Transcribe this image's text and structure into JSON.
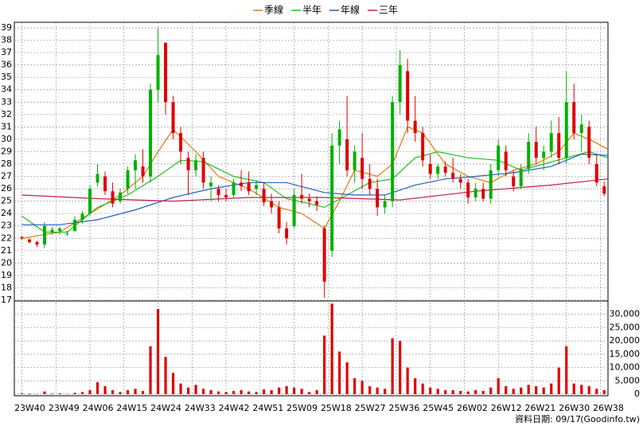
{
  "chart_data": {
    "type": "candlestick",
    "x": [
      0,
      2,
      4,
      6,
      8,
      10,
      12,
      14,
      16,
      18,
      20,
      22,
      24,
      26,
      28,
      30,
      32,
      34,
      36,
      38,
      40,
      42,
      44,
      46,
      48,
      50,
      52,
      54,
      56,
      58,
      60,
      62,
      64,
      66,
      68,
      70,
      72,
      74,
      76,
      78,
      80,
      82,
      84,
      86,
      88,
      90,
      92,
      94,
      96,
      98,
      100,
      102,
      104,
      106,
      108,
      110,
      112,
      114,
      116,
      118,
      120,
      122,
      124,
      126,
      128,
      130,
      132,
      134,
      136,
      138,
      140,
      142,
      144,
      146,
      148,
      150,
      152,
      154
    ],
    "open": [
      22.1,
      21.9,
      21.7,
      21.5,
      22.5,
      22.6,
      22.4,
      22.6,
      23.5,
      24.0,
      26.5,
      27.0,
      25.8,
      25.0,
      26.0,
      27.5,
      27.8,
      27.0,
      34.0,
      37.8,
      33.0,
      30.5,
      28.5,
      27.5,
      28.5,
      26.2,
      26.0,
      25.5,
      25.5,
      26.5,
      26.5,
      26.0,
      26.0,
      25.0,
      24.5,
      22.8,
      23.0,
      25.5,
      25.2,
      25.0,
      22.8,
      21.0,
      29.5,
      30.0,
      27.5,
      28.5,
      26.8,
      26.0,
      24.5,
      25.0,
      33.0,
      35.5,
      31.5,
      30.5,
      28.0,
      27.2,
      27.8,
      27.3,
      26.8,
      26.5,
      25.3,
      26.0,
      25.2,
      27.5,
      29.0,
      27.0,
      26.2,
      27.6,
      29.8,
      28.5,
      29.0,
      30.5,
      28.5,
      33.0,
      30.5,
      31.0,
      28.0,
      26.2
    ],
    "high": [
      22.2,
      22.0,
      21.8,
      23.3,
      22.9,
      22.9,
      22.6,
      23.8,
      24.2,
      26.3,
      28.0,
      27.4,
      26.5,
      26.0,
      27.8,
      28.8,
      29.2,
      34.5,
      39.0,
      37.8,
      33.5,
      31.0,
      29.0,
      28.8,
      29.0,
      27.0,
      26.3,
      26.0,
      26.8,
      27.5,
      27.4,
      26.7,
      26.5,
      25.6,
      25.0,
      23.3,
      26.0,
      27.2,
      25.6,
      25.4,
      23.0,
      30.5,
      31.5,
      33.5,
      29.5,
      30.5,
      28.0,
      26.8,
      25.5,
      33.5,
      37.2,
      36.5,
      33.5,
      31.0,
      28.8,
      28.0,
      28.2,
      28.5,
      27.2,
      26.8,
      26.5,
      26.5,
      28.0,
      30.0,
      29.5,
      27.5,
      28.0,
      30.5,
      31.0,
      29.5,
      31.5,
      31.8,
      35.5,
      34.5,
      32.0,
      31.5,
      28.8,
      26.6
    ],
    "low": [
      21.9,
      21.6,
      21.3,
      21.2,
      22.3,
      22.3,
      22.2,
      22.5,
      23.2,
      23.8,
      26.2,
      25.5,
      24.5,
      24.8,
      25.6,
      26.0,
      26.5,
      26.5,
      33.0,
      32.0,
      30.0,
      28.0,
      25.5,
      27.0,
      26.0,
      25.0,
      25.0,
      25.0,
      25.2,
      25.8,
      25.5,
      25.5,
      24.6,
      24.0,
      22.4,
      21.5,
      22.8,
      24.8,
      24.5,
      24.2,
      17.2,
      20.5,
      28.0,
      27.0,
      26.5,
      26.0,
      25.5,
      23.8,
      24.0,
      24.5,
      32.0,
      30.5,
      29.8,
      27.8,
      26.8,
      26.8,
      27.0,
      26.5,
      26.0,
      24.8,
      25.0,
      25.0,
      24.8,
      27.0,
      27.0,
      25.8,
      26.0,
      27.2,
      28.0,
      27.5,
      28.5,
      28.0,
      28.0,
      30.0,
      29.0,
      28.0,
      26.2,
      25.4
    ],
    "close": [
      22.0,
      21.7,
      21.5,
      23.0,
      22.7,
      22.8,
      22.4,
      23.5,
      24.0,
      26.0,
      27.2,
      25.8,
      24.8,
      25.7,
      27.5,
      28.3,
      27.0,
      34.0,
      36.8,
      33.0,
      30.5,
      29.0,
      27.5,
      28.3,
      26.5,
      26.5,
      25.5,
      25.3,
      26.5,
      26.2,
      25.8,
      26.3,
      24.9,
      24.5,
      22.8,
      22.0,
      25.5,
      25.2,
      25.0,
      24.7,
      18.5,
      29.5,
      30.8,
      27.5,
      29.0,
      26.8,
      26.0,
      24.5,
      25.0,
      33.0,
      36.0,
      31.5,
      30.5,
      28.3,
      27.2,
      27.8,
      27.3,
      26.8,
      26.5,
      25.3,
      26.0,
      25.2,
      27.5,
      29.5,
      27.5,
      26.2,
      27.6,
      29.8,
      28.5,
      29.0,
      30.5,
      28.5,
      33.0,
      30.5,
      31.2,
      28.5,
      26.5,
      25.6
    ],
    "up_color": "#00b000",
    "down_color": "#e00000",
    "series": [
      {
        "name": "季線",
        "color": "#e07a10",
        "x": [
          0,
          10,
          18,
          26,
          32,
          36,
          40,
          46,
          52,
          60,
          68,
          74,
          80,
          84,
          88,
          94,
          98,
          102,
          106,
          112,
          118,
          124,
          130,
          136,
          142,
          146,
          150,
          155
        ],
        "values": [
          22,
          22.5,
          24,
          25.5,
          27,
          29,
          30.8,
          29,
          27,
          26,
          24.5,
          24,
          22.8,
          25,
          27.5,
          27,
          28,
          31,
          30.5,
          28,
          27,
          26.5,
          27.5,
          28,
          29,
          30.5,
          30,
          29.2
        ]
      },
      {
        "name": "半年",
        "color": "#20c020",
        "x": [
          0,
          6,
          12,
          20,
          28,
          36,
          42,
          48,
          56,
          64,
          70,
          76,
          80,
          86,
          92,
          98,
          104,
          110,
          118,
          126,
          132,
          138,
          144,
          150,
          155
        ],
        "values": [
          23.8,
          22.5,
          22.5,
          24.5,
          25.5,
          27,
          28.3,
          28.2,
          27,
          26.5,
          25.2,
          24.8,
          24.5,
          25.5,
          26.5,
          26.8,
          28.5,
          29,
          28.5,
          28.3,
          27.5,
          28,
          28.5,
          29,
          28.5
        ]
      },
      {
        "name": "年線",
        "color": "#2060c0",
        "x": [
          0,
          10,
          20,
          30,
          40,
          50,
          60,
          70,
          80,
          88,
          96,
          104,
          112,
          120,
          130,
          140,
          148,
          155
        ],
        "values": [
          23.1,
          23.1,
          23.5,
          24.3,
          25.3,
          26,
          26.5,
          26.5,
          25.7,
          25.5,
          25.5,
          26.3,
          26.8,
          27,
          27.3,
          27.8,
          28.8,
          28.7
        ]
      },
      {
        "name": "三年",
        "color": "#c02050",
        "x": [
          0,
          20,
          40,
          60,
          80,
          100,
          120,
          140,
          155
        ],
        "values": [
          25.5,
          25.2,
          25,
          25.3,
          25.3,
          25.1,
          25.8,
          26.3,
          26.8
        ]
      }
    ],
    "xlim": [
      -2,
      155
    ],
    "xticks": [
      {
        "value": 0,
        "label": "23W40"
      },
      {
        "value": 9,
        "label": "23W49"
      },
      {
        "value": 18,
        "label": "24W06"
      },
      {
        "value": 27,
        "label": "24W15"
      },
      {
        "value": 36,
        "label": "24W24"
      },
      {
        "value": 45,
        "label": "24W33"
      },
      {
        "value": 54,
        "label": "24W42"
      },
      {
        "value": 63,
        "label": "24W51"
      },
      {
        "value": 72,
        "label": "25W09"
      },
      {
        "value": 81,
        "label": "25W18"
      },
      {
        "value": 90,
        "label": "25W27"
      },
      {
        "value": 99,
        "label": "25W36"
      },
      {
        "value": 108,
        "label": "25W45"
      },
      {
        "value": 117,
        "label": "26W02"
      },
      {
        "value": 126,
        "label": "26W12"
      },
      {
        "value": 135,
        "label": "26W21"
      },
      {
        "value": 144,
        "label": "26W30"
      },
      {
        "value": 153,
        "label": "26W38"
      }
    ],
    "ylim": [
      17,
      39.45
    ],
    "yticks": [
      17,
      18,
      19,
      20,
      21,
      22,
      23,
      24,
      25,
      26,
      27,
      28,
      29,
      30,
      31,
      32,
      33,
      34,
      35,
      36,
      37,
      38,
      39
    ],
    "grid": true,
    "volume": {
      "color": "#e00000",
      "values": [
        300,
        200,
        100,
        1000,
        200,
        300,
        100,
        500,
        800,
        1500,
        4500,
        3000,
        1500,
        800,
        1500,
        2000,
        1200,
        18000,
        32000,
        14000,
        8000,
        4000,
        2500,
        3500,
        2000,
        1500,
        1000,
        800,
        1200,
        1500,
        1000,
        800,
        1800,
        1500,
        2500,
        3000,
        2500,
        2000,
        800,
        1500,
        22000,
        34000,
        16000,
        12000,
        6000,
        5000,
        3000,
        2500,
        2000,
        21000,
        20000,
        10000,
        6000,
        4000,
        2500,
        2000,
        1500,
        1500,
        1200,
        1000,
        1500,
        1200,
        2500,
        6000,
        3000,
        2000,
        2500,
        3500,
        3000,
        2500,
        4000,
        10000,
        18000,
        4000,
        3500,
        3000,
        2000,
        1500
      ],
      "ylim": [
        0,
        35000
      ],
      "yticks": [
        0,
        {
          "value": 5000,
          "label": "5,000"
        },
        {
          "value": 10000,
          "label": "10,000"
        },
        {
          "value": 15000,
          "label": "15,000"
        },
        {
          "value": 20000,
          "label": "20,000"
        },
        {
          "value": 25000,
          "label": "25,000"
        },
        {
          "value": 30000,
          "label": "30,000"
        }
      ]
    },
    "date_note": "資料日期: 09/17",
    "source": "(Goodinfo.tw)"
  }
}
